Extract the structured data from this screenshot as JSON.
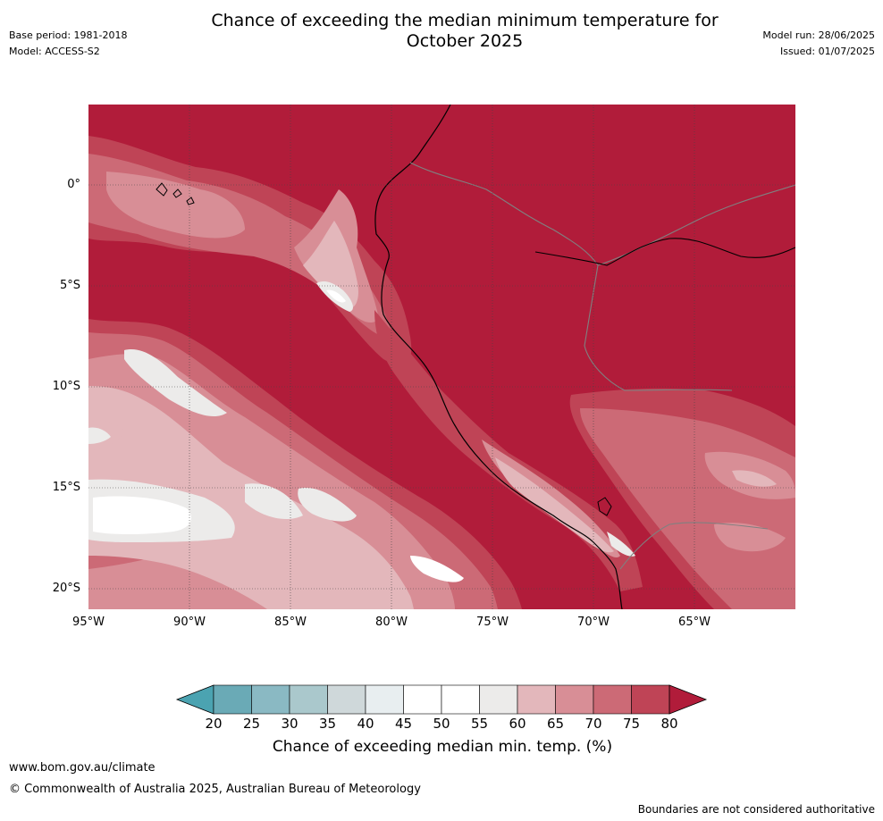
{
  "title_line1": "Chance of exceeding the median minimum temperature for",
  "title_line2": "October 2025",
  "meta": {
    "base_period": "Base period: 1981-2018",
    "model": "Model: ACCESS-S2",
    "model_run": "Model run: 28/06/2025",
    "issued": "Issued: 01/07/2025"
  },
  "map": {
    "lat_labels": [
      "0°",
      "5°S",
      "10°S",
      "15°S",
      "20°S"
    ],
    "lon_labels": [
      "95°W",
      "90°W",
      "85°W",
      "80°W",
      "75°W",
      "70°W",
      "65°W"
    ],
    "dominant_category": "80",
    "colors": {
      "c_gt80": "#b11c3a",
      "c_75_80": "#bf4456",
      "c_70_75": "#cc6a76",
      "c_65_70": "#d88e96",
      "c_60_65": "#e3b7bb",
      "c_55_60": "#ecebea",
      "c_50_55": "#ffffff"
    }
  },
  "colorbar": {
    "ticks": [
      "20",
      "25",
      "30",
      "35",
      "40",
      "45",
      "50",
      "55",
      "60",
      "65",
      "70",
      "75",
      "80"
    ],
    "colors": [
      "#6aaab6",
      "#8ab9c3",
      "#aac8cc",
      "#cfd8da",
      "#e8eef0",
      "#ffffff",
      "#ffffff",
      "#ecebea",
      "#e3b7bb",
      "#d88e96",
      "#cc6a76",
      "#bf4456"
    ],
    "under_color": "#4ba3b1",
    "over_color": "#b11c3a",
    "label": "Chance of exceeding median min. temp. (%)"
  },
  "footer": {
    "url": "www.bom.gov.au/climate",
    "copyright": "© Commonwealth of Australia 2025, Australian Bureau of Meteorology",
    "disclaimer": "Boundaries are not considered authoritative"
  }
}
